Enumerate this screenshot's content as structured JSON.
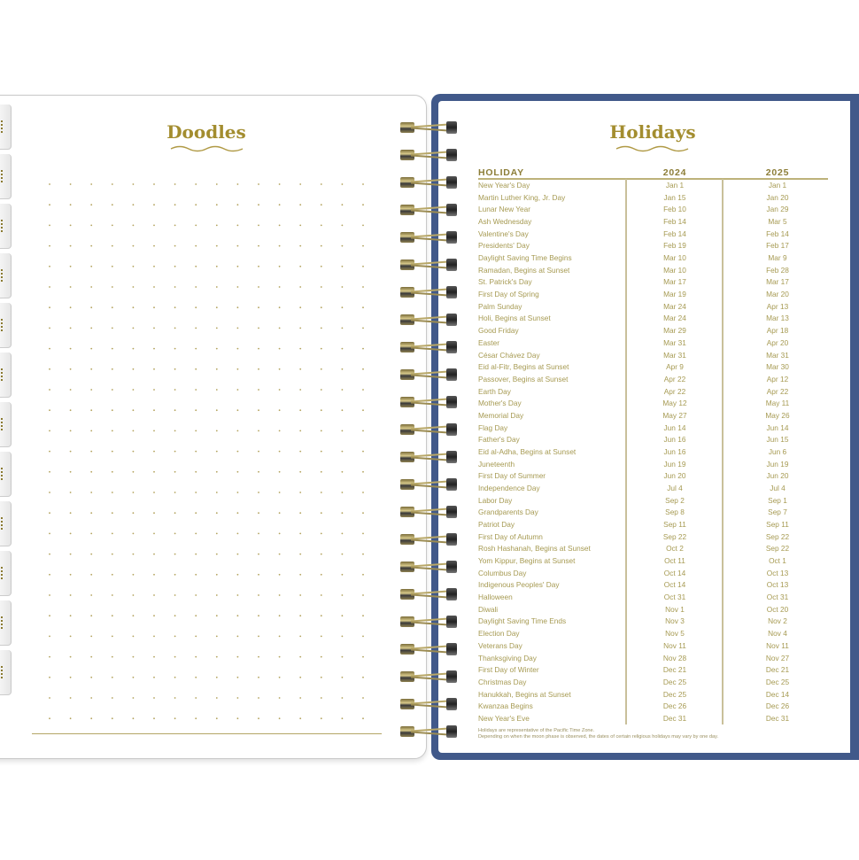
{
  "left_page": {
    "title": "Doodles"
  },
  "right_page": {
    "title": "Holidays",
    "columns": [
      "HOLIDAY",
      "2024",
      "2025"
    ],
    "rows": [
      [
        "New Year's Day",
        "Jan 1",
        "Jan 1"
      ],
      [
        "Martin Luther King, Jr. Day",
        "Jan 15",
        "Jan 20"
      ],
      [
        "Lunar New Year",
        "Feb 10",
        "Jan 29"
      ],
      [
        "Ash Wednesday",
        "Feb 14",
        "Mar 5"
      ],
      [
        "Valentine's Day",
        "Feb 14",
        "Feb 14"
      ],
      [
        "Presidents' Day",
        "Feb 19",
        "Feb 17"
      ],
      [
        "Daylight Saving Time Begins",
        "Mar 10",
        "Mar 9"
      ],
      [
        "Ramadan, Begins at Sunset",
        "Mar 10",
        "Feb 28"
      ],
      [
        "St. Patrick's Day",
        "Mar 17",
        "Mar 17"
      ],
      [
        "First Day of Spring",
        "Mar 19",
        "Mar 20"
      ],
      [
        "Palm Sunday",
        "Mar 24",
        "Apr 13"
      ],
      [
        "Holi, Begins at Sunset",
        "Mar 24",
        "Mar 13"
      ],
      [
        "Good Friday",
        "Mar 29",
        "Apr 18"
      ],
      [
        "Easter",
        "Mar 31",
        "Apr 20"
      ],
      [
        "César Chávez Day",
        "Mar 31",
        "Mar 31"
      ],
      [
        "Eid al-Fitr, Begins at Sunset",
        "Apr 9",
        "Mar 30"
      ],
      [
        "Passover, Begins at Sunset",
        "Apr 22",
        "Apr 12"
      ],
      [
        "Earth Day",
        "Apr 22",
        "Apr 22"
      ],
      [
        "Mother's Day",
        "May 12",
        "May 11"
      ],
      [
        "Memorial Day",
        "May 27",
        "May 26"
      ],
      [
        "Flag Day",
        "Jun 14",
        "Jun 14"
      ],
      [
        "Father's Day",
        "Jun 16",
        "Jun 15"
      ],
      [
        "Eid al-Adha, Begins at Sunset",
        "Jun 16",
        "Jun 6"
      ],
      [
        "Juneteenth",
        "Jun 19",
        "Jun 19"
      ],
      [
        "First Day of Summer",
        "Jun 20",
        "Jun 20"
      ],
      [
        "Independence Day",
        "Jul 4",
        "Jul 4"
      ],
      [
        "Labor Day",
        "Sep 2",
        "Sep 1"
      ],
      [
        "Grandparents Day",
        "Sep 8",
        "Sep 7"
      ],
      [
        "Patriot Day",
        "Sep 11",
        "Sep 11"
      ],
      [
        "First Day of Autumn",
        "Sep 22",
        "Sep 22"
      ],
      [
        "Rosh Hashanah, Begins at Sunset",
        "Oct 2",
        "Sep 22"
      ],
      [
        "Yom Kippur, Begins at Sunset",
        "Oct 11",
        "Oct 1"
      ],
      [
        "Columbus Day",
        "Oct 14",
        "Oct 13"
      ],
      [
        "Indigenous Peoples' Day",
        "Oct 14",
        "Oct 13"
      ],
      [
        "Halloween",
        "Oct 31",
        "Oct 31"
      ],
      [
        "Diwali",
        "Nov 1",
        "Oct 20"
      ],
      [
        "Daylight Saving Time Ends",
        "Nov 3",
        "Nov 2"
      ],
      [
        "Election Day",
        "Nov 5",
        "Nov 4"
      ],
      [
        "Veterans Day",
        "Nov 11",
        "Nov 11"
      ],
      [
        "Thanksgiving Day",
        "Nov 28",
        "Nov 27"
      ],
      [
        "First Day of Winter",
        "Dec 21",
        "Dec 21"
      ],
      [
        "Christmas Day",
        "Dec 25",
        "Dec 25"
      ],
      [
        "Hanukkah, Begins at Sunset",
        "Dec 25",
        "Dec 14"
      ],
      [
        "Kwanzaa Begins",
        "Dec 26",
        "Dec 26"
      ],
      [
        "New Year's Eve",
        "Dec 31",
        "Dec 31"
      ]
    ],
    "notes": [
      "Holidays are representative of the Pacific Time Zone.",
      "Depending on when the moon phase is observed, the dates of certain religious holidays may vary by one day."
    ]
  },
  "colors": {
    "gold": "#a38d2f",
    "text": "#a69a52",
    "cover": "#41598a"
  }
}
